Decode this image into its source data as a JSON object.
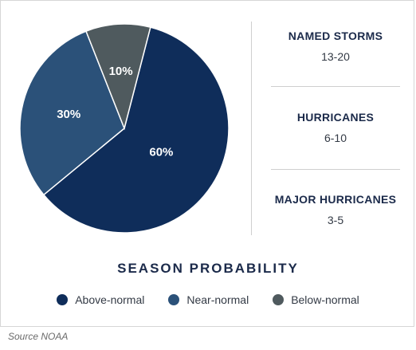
{
  "chart_data": {
    "type": "pie",
    "title": "SEASON PROBABILITY",
    "slices": [
      {
        "name": "Above-normal",
        "value": 60,
        "label": "60%",
        "color": "#0f2d5a"
      },
      {
        "name": "Near-normal",
        "value": 30,
        "label": "30%",
        "color": "#2b5179"
      },
      {
        "name": "Below-normal",
        "value": 10,
        "label": "10%",
        "color": "#4f5a5e"
      }
    ],
    "legend_placement": "bottom"
  },
  "stats": [
    {
      "label": "NAMED STORMS",
      "value": "13-20"
    },
    {
      "label": "HURRICANES",
      "value": "6-10"
    },
    {
      "label": "MAJOR HURRICANES",
      "value": "3-5"
    }
  ],
  "source": "Source NOAA"
}
